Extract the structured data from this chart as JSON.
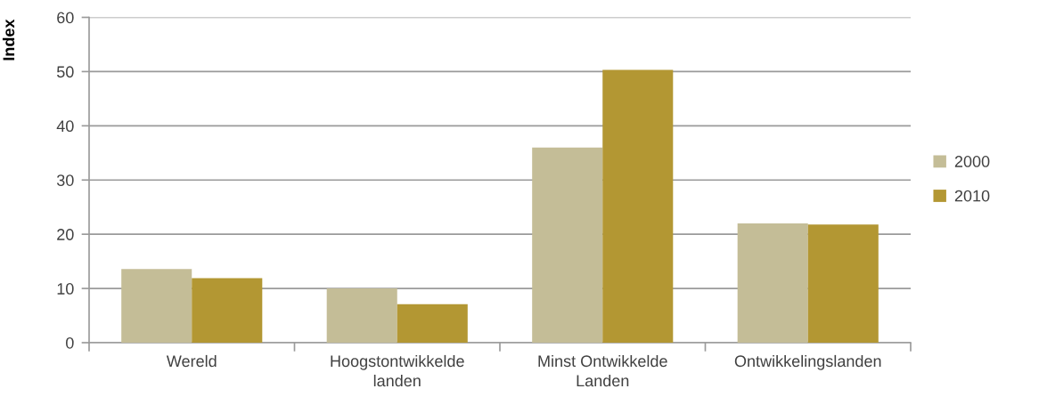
{
  "chart_data": {
    "type": "bar",
    "ylabel": "Index",
    "categories": [
      "Wereld",
      "Hoogstontwikkelde\nlanden",
      "Minst Ontwikkelde\nLanden",
      "Ontwikkelingslanden"
    ],
    "series": [
      {
        "name": "2000",
        "color": "#c4bd97",
        "values": [
          13.6,
          10.0,
          36.0,
          22.0
        ]
      },
      {
        "name": "2010",
        "color": "#b39733",
        "values": [
          11.9,
          7.1,
          50.3,
          21.8
        ]
      }
    ],
    "ylim": [
      0,
      60
    ],
    "yticks": [
      0,
      10,
      20,
      30,
      40,
      50,
      60
    ],
    "grid": "y",
    "legend": "right"
  }
}
